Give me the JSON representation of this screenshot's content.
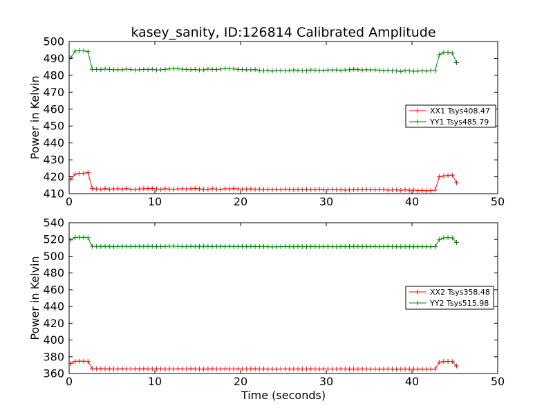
{
  "title": "kasey_sanity, ID:126814 Calibrated Amplitude",
  "chart_data": [
    {
      "type": "line",
      "xlabel": "",
      "ylabel": "Power in Kelvin",
      "xlim": [
        0,
        50
      ],
      "ylim": [
        410,
        500
      ],
      "xticks": [
        "0",
        "10",
        "20",
        "30",
        "40",
        "50"
      ],
      "yticks": [
        "410",
        "420",
        "430",
        "440",
        "450",
        "460",
        "470",
        "480",
        "490",
        "500"
      ],
      "grid": false,
      "legend_position": "center-right",
      "x": [
        0.2,
        0.7,
        1.2,
        1.7,
        2.2,
        2.7,
        3.2,
        3.7,
        4.2,
        4.7,
        5.2,
        5.7,
        6.2,
        6.7,
        7.2,
        7.7,
        8.2,
        8.7,
        9.2,
        9.7,
        10.2,
        10.7,
        11.2,
        11.7,
        12.2,
        12.7,
        13.2,
        13.7,
        14.2,
        14.7,
        15.2,
        15.7,
        16.2,
        16.7,
        17.2,
        17.7,
        18.2,
        18.7,
        19.2,
        19.7,
        20.2,
        20.7,
        21.2,
        21.7,
        22.2,
        22.7,
        23.2,
        23.7,
        24.2,
        24.7,
        25.2,
        25.7,
        26.2,
        26.7,
        27.2,
        27.7,
        28.2,
        28.7,
        29.2,
        29.7,
        30.2,
        30.7,
        31.2,
        31.7,
        32.2,
        32.7,
        33.2,
        33.7,
        34.2,
        34.7,
        35.2,
        35.7,
        36.2,
        36.7,
        37.2,
        37.7,
        38.2,
        38.7,
        39.2,
        39.7,
        40.2,
        40.7,
        41.2,
        41.7,
        42.2,
        42.7,
        43.2,
        43.7,
        44.2,
        44.7,
        45.2
      ],
      "series": [
        {
          "name": "XX1 Tsys408.47",
          "color": "#ff0000",
          "values": [
            418.5,
            421.5,
            422,
            422,
            422.5,
            413,
            412.8,
            412.6,
            413,
            412.6,
            412.8,
            412.9,
            412.7,
            413,
            412.6,
            412.5,
            412.8,
            412.9,
            413,
            413.1,
            412.8,
            412.5,
            412.9,
            412.7,
            412.6,
            412.8,
            412.9,
            412.7,
            412.9,
            413.1,
            412.8,
            412.5,
            412.6,
            412.9,
            412.7,
            412.5,
            412.9,
            412.8,
            413,
            412.8,
            412.7,
            412.7,
            412.8,
            412.6,
            412.7,
            412.5,
            412.6,
            412.4,
            412.6,
            412.4,
            412.7,
            412.5,
            412.3,
            412.6,
            412.4,
            412.6,
            412.4,
            412.5,
            412.7,
            412.3,
            412.4,
            412.6,
            412.3,
            412.4,
            412.1,
            412.2,
            412.3,
            412.5,
            412.5,
            412.6,
            412.4,
            412.3,
            412.5,
            412.4,
            412.1,
            412.2,
            412.3,
            412,
            412.3,
            412,
            412.1,
            411.8,
            411.9,
            411.7,
            411.8,
            412.1,
            420,
            420.5,
            420.8,
            421,
            416.5
          ]
        },
        {
          "name": "YY1 Tsys485.79",
          "color": "#008000",
          "values": [
            490.5,
            494.3,
            494.6,
            494.5,
            494,
            483.5,
            483.5,
            483.4,
            483.7,
            483.5,
            483.3,
            483.3,
            483.3,
            483.7,
            483.4,
            483.2,
            483.3,
            483.5,
            483.4,
            483.6,
            483.2,
            483.3,
            483.5,
            483.8,
            484,
            483.9,
            483.6,
            483.5,
            483.3,
            483.5,
            483.2,
            483.3,
            483.7,
            483.5,
            483.4,
            483.7,
            484,
            483.9,
            483.8,
            483.5,
            483.4,
            483.3,
            483.3,
            483.4,
            482.9,
            482.8,
            482.9,
            482.5,
            482.9,
            482.7,
            482.6,
            482.9,
            483.1,
            482.9,
            482.8,
            482.7,
            483.2,
            483,
            482.8,
            482.9,
            483.1,
            483.2,
            483.2,
            482.9,
            483.2,
            483.3,
            483.6,
            483.4,
            483.1,
            483.3,
            483.2,
            483.2,
            483,
            482.7,
            482.9,
            482.7,
            482.6,
            482.3,
            482.8,
            482.6,
            482.4,
            482.5,
            482.7,
            482.5,
            482.8,
            482.7,
            492.3,
            493.5,
            493.6,
            493.2,
            487.5
          ]
        }
      ]
    },
    {
      "type": "line",
      "xlabel": "Time (seconds)",
      "ylabel": "Power in Kelvin",
      "xlim": [
        0,
        50
      ],
      "ylim": [
        360,
        540
      ],
      "xticks": [
        "0",
        "10",
        "20",
        "30",
        "40",
        "50"
      ],
      "yticks": [
        "360",
        "380",
        "400",
        "420",
        "440",
        "460",
        "480",
        "500",
        "520",
        "540"
      ],
      "grid": false,
      "legend_position": "center-right",
      "x": [
        0.2,
        0.7,
        1.2,
        1.7,
        2.2,
        2.7,
        3.2,
        3.7,
        4.2,
        4.7,
        5.2,
        5.7,
        6.2,
        6.7,
        7.2,
        7.7,
        8.2,
        8.7,
        9.2,
        9.7,
        10.2,
        10.7,
        11.2,
        11.7,
        12.2,
        12.7,
        13.2,
        13.7,
        14.2,
        14.7,
        15.2,
        15.7,
        16.2,
        16.7,
        17.2,
        17.7,
        18.2,
        18.7,
        19.2,
        19.7,
        20.2,
        20.7,
        21.2,
        21.7,
        22.2,
        22.7,
        23.2,
        23.7,
        24.2,
        24.7,
        25.2,
        25.7,
        26.2,
        26.7,
        27.2,
        27.7,
        28.2,
        28.7,
        29.2,
        29.7,
        30.2,
        30.7,
        31.2,
        31.7,
        32.2,
        32.7,
        33.2,
        33.7,
        34.2,
        34.7,
        35.2,
        35.7,
        36.2,
        36.7,
        37.2,
        37.7,
        38.2,
        38.7,
        39.2,
        39.7,
        40.2,
        40.7,
        41.2,
        41.7,
        42.2,
        42.7,
        43.2,
        43.7,
        44.2,
        44.7,
        45.2
      ],
      "series": [
        {
          "name": "XX2 Tsys358.48",
          "color": "#ff0000",
          "values": [
            372,
            374.5,
            374.8,
            374.7,
            374.5,
            365.8,
            365.6,
            365.7,
            365.5,
            365.6,
            365.4,
            365.5,
            365.6,
            365.5,
            365.4,
            365.6,
            365.5,
            365.7,
            365.5,
            365.4,
            365.6,
            365.5,
            365.3,
            365.5,
            365.4,
            365.6,
            365.5,
            365.4,
            365.7,
            365.5,
            365.4,
            365.2,
            365.5,
            365.6,
            365.4,
            365.5,
            365.6,
            365.5,
            365.4,
            365.6,
            365.5,
            365.4,
            365.5,
            365.6,
            365.4,
            365.5,
            365.3,
            365.4,
            365.2,
            365.4,
            365.5,
            365.3,
            365.4,
            365.5,
            365.3,
            365.4,
            365.6,
            365.4,
            365.3,
            365.5,
            365.4,
            365.3,
            365.4,
            365.5,
            365.4,
            365.2,
            365.4,
            365.3,
            365.5,
            365.4,
            365.3,
            365.4,
            365.2,
            365.3,
            365.4,
            365.3,
            365.2,
            365.3,
            365.4,
            365.3,
            365.2,
            365.1,
            365.3,
            365.2,
            365.1,
            365.3,
            373.5,
            374.3,
            374.5,
            374.2,
            369
          ]
        },
        {
          "name": "YY2 Tsys515.98",
          "color": "#008000",
          "values": [
            519.5,
            522.3,
            522.6,
            522.5,
            522,
            511.8,
            511.7,
            511.6,
            511.8,
            511.7,
            511.5,
            511.6,
            511.8,
            511.7,
            511.6,
            511.7,
            511.8,
            511.6,
            511.7,
            511.8,
            511.6,
            511.5,
            511.7,
            511.9,
            512,
            511.8,
            511.5,
            511.6,
            511.8,
            511.7,
            511.6,
            511.8,
            511.7,
            511.6,
            511.8,
            511.7,
            511.6,
            511.8,
            511.7,
            511.6,
            511.7,
            511.6,
            511.7,
            511.6,
            511.5,
            511.6,
            511.4,
            511.2,
            511.3,
            511.4,
            511.6,
            511.5,
            511.4,
            511.6,
            511.5,
            511.4,
            511.6,
            511.5,
            511.4,
            511.5,
            511.6,
            511.5,
            511.4,
            511.6,
            511.5,
            511.6,
            511.7,
            511.6,
            511.5,
            511.6,
            511.5,
            511.6,
            511.4,
            511.5,
            511.6,
            511.5,
            511.4,
            511.3,
            511.5,
            511.4,
            511.3,
            511.4,
            511.5,
            511.4,
            511.3,
            511.4,
            520,
            521.8,
            522.2,
            521.8,
            516.5
          ]
        }
      ]
    }
  ]
}
